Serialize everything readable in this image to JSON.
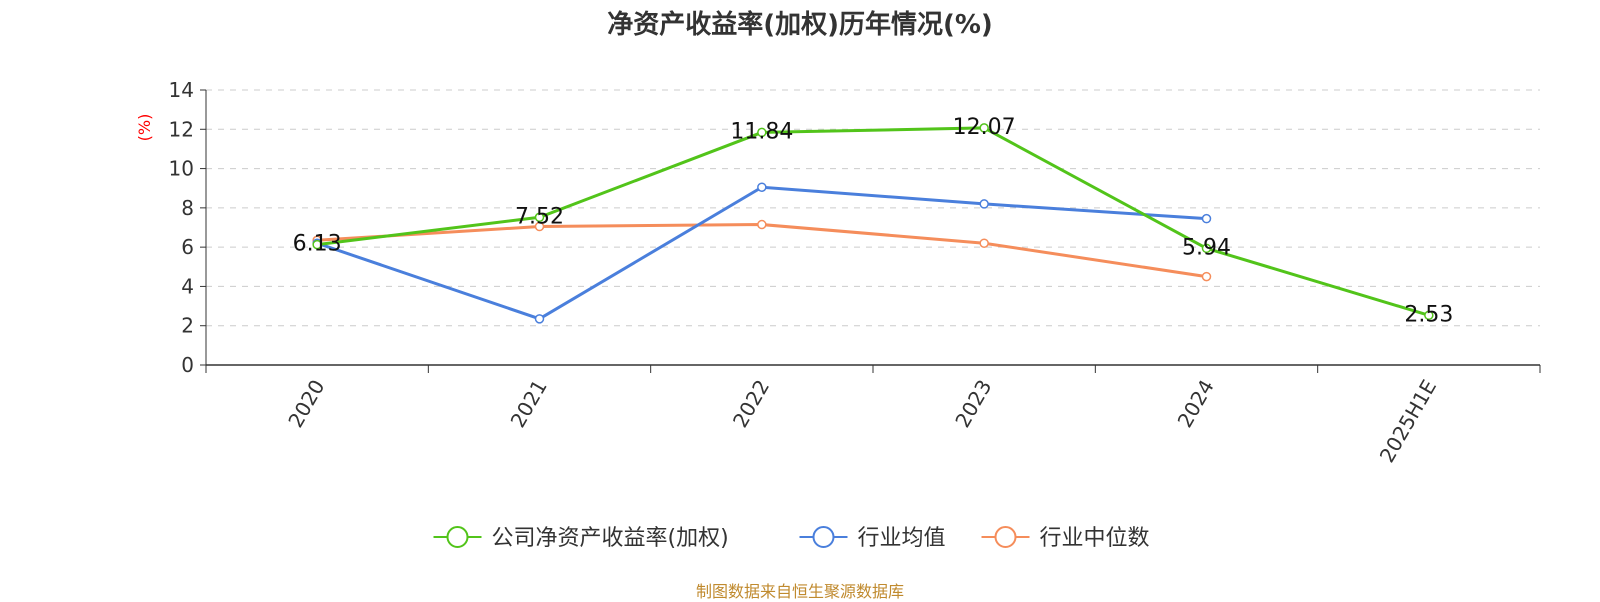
{
  "chart_data": {
    "type": "line",
    "title": "净资产收益率(加权)历年情况(%)",
    "ylabel": "(%)",
    "xlabel": "",
    "categories": [
      "2020",
      "2021",
      "2022",
      "2023",
      "2024",
      "2025H1E"
    ],
    "ylim": [
      0,
      14
    ],
    "yticks": [
      0,
      2,
      4,
      6,
      8,
      10,
      12,
      14
    ],
    "grid": true,
    "legend_position": "bottom",
    "series": [
      {
        "name": "公司净资产收益率(加权)",
        "color": "#52c41a",
        "values": [
          6.13,
          7.52,
          11.84,
          12.07,
          5.94,
          2.53
        ],
        "data_labels": [
          "6.13",
          "7.52",
          "11.84",
          "12.07",
          "5.94",
          "2.53"
        ]
      },
      {
        "name": "行业均值",
        "color": "#4a7fdc",
        "values": [
          6.2,
          2.35,
          9.05,
          8.2,
          7.45,
          null
        ]
      },
      {
        "name": "行业中位数",
        "color": "#f58d5b",
        "values": [
          6.35,
          7.05,
          7.15,
          6.2,
          4.5,
          null
        ]
      }
    ]
  },
  "source_note": "制图数据来自恒生聚源数据库"
}
